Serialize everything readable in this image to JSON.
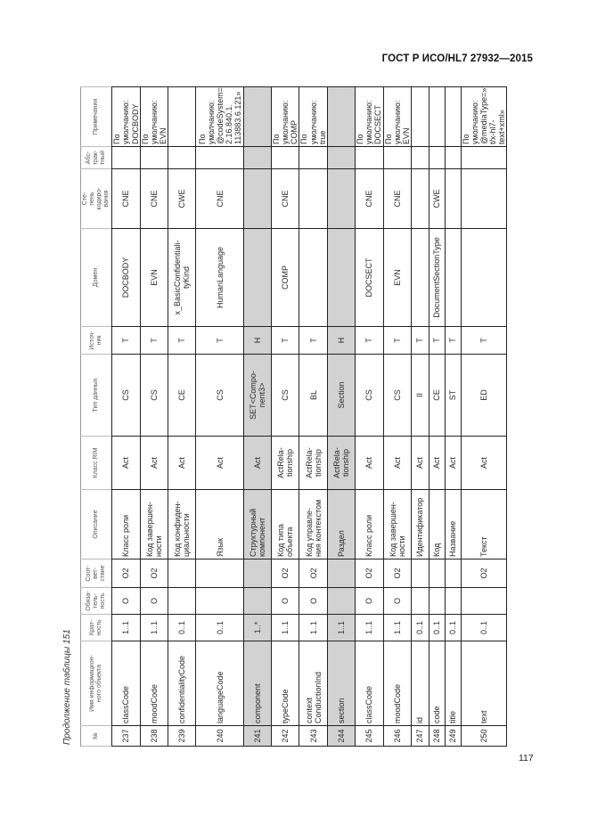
{
  "header": {
    "title": "ГОСТ Р ИСО/HL7 27932—2015"
  },
  "footer": {
    "page_number": "117"
  },
  "table": {
    "caption": "Продолжение таблицы 151",
    "columns": [
      "№",
      "Имя информацион-\nного объекта",
      "Крат-\nность",
      "Обяза-\nтель-\nность",
      "Соот-\nвет-\nствие",
      "Описание",
      "Класс RIM",
      "Тип данных",
      "Источ-\nник",
      "Домен",
      "Сте-\nпень\nкодиро-\nвания",
      "Абс-\nтрак-\nтный",
      "Примечания"
    ],
    "shaded_row_color": "#d2d2d2",
    "rows": [
      {
        "num": "237",
        "name": "classCode",
        "card": "1..1",
        "mand": "O",
        "conf": "O2",
        "desc": "Класс роли",
        "rim": "Act",
        "type": "CS",
        "src": "T",
        "domain": "DOCBODY",
        "coding": "CNE",
        "abstract": "",
        "note": "По умолчанию:\nDOCBODY",
        "shaded": false
      },
      {
        "num": "238",
        "name": "moodCode",
        "card": "1..1",
        "mand": "O",
        "conf": "O2",
        "desc": "Код завершен-\nности",
        "rim": "Act",
        "type": "CS",
        "src": "T",
        "domain": "EVN",
        "coding": "CNE",
        "abstract": "",
        "note": "По умолчанию:\nEVN",
        "shaded": false
      },
      {
        "num": "239",
        "name": "confidentialityCode",
        "card": "0..1",
        "mand": "",
        "conf": "",
        "desc": "Код конфиден-\nциальности",
        "rim": "Act",
        "type": "CE",
        "src": "T",
        "domain": "x_BasicConfidentiali-\ntyKind",
        "coding": "CWE",
        "abstract": "",
        "note": "",
        "shaded": false
      },
      {
        "num": "240",
        "name": "languageCode",
        "card": "0..1",
        "mand": "",
        "conf": "",
        "desc": "Язык",
        "rim": "Act",
        "type": "CS",
        "src": "T",
        "domain": "HumanLanguage",
        "coding": "CNE",
        "abstract": "",
        "note": "По умолчанию:\n@codeSystem=»\n2.16.840.1.\n113883.6.121»",
        "shaded": false
      },
      {
        "num": "241",
        "name": "component",
        "card": "1..*",
        "mand": "",
        "conf": "",
        "desc": "Структурный\nкомпонент",
        "rim": "Act",
        "type": "SET<Compo-\nnent3>",
        "src": "H",
        "domain": "",
        "coding": "",
        "abstract": "",
        "note": "",
        "shaded": true
      },
      {
        "num": "242",
        "name": "typeCode",
        "card": "1..1",
        "mand": "O",
        "conf": "O2",
        "desc": "Код типа\nобъекта",
        "rim": "ActRela-\ntionship",
        "type": "CS",
        "src": "T",
        "domain": "COMP",
        "coding": "CNE",
        "abstract": "",
        "note": "По умолчанию:\nCOMP",
        "shaded": false
      },
      {
        "num": "243",
        "name": "context\nConductionInd",
        "card": "1..1",
        "mand": "O",
        "conf": "O2",
        "desc": "Код управле-\nния контекстом",
        "rim": "ActRela-\ntionship",
        "type": "BL",
        "src": "T",
        "domain": "",
        "coding": "",
        "abstract": "",
        "note": "По умолчанию:\ntrue",
        "shaded": false
      },
      {
        "num": "244",
        "name": "section",
        "card": "1..1",
        "mand": "",
        "conf": "",
        "desc": "Раздел",
        "rim": "ActRela-\ntionship",
        "type": "Section",
        "src": "H",
        "domain": "",
        "coding": "",
        "abstract": "",
        "note": "",
        "shaded": true
      },
      {
        "num": "245",
        "name": "classCode",
        "card": "1..1",
        "mand": "O",
        "conf": "O2",
        "desc": "Класс роли",
        "rim": "Act",
        "type": "CS",
        "src": "T",
        "domain": "DOCSECT",
        "coding": "CNE",
        "abstract": "",
        "note": "По умолчанию:\nDOCSECT",
        "shaded": false
      },
      {
        "num": "246",
        "name": "moodCode",
        "card": "1..1",
        "mand": "O",
        "conf": "O2",
        "desc": "Код завершен-\nности",
        "rim": "Act",
        "type": "CS",
        "src": "T",
        "domain": "EVN",
        "coding": "CNE",
        "abstract": "",
        "note": "По умолчанию:\nEVN",
        "shaded": false
      },
      {
        "num": "247",
        "name": "id",
        "card": "0..1",
        "mand": "",
        "conf": "",
        "desc": "Идентификатор",
        "rim": "Act",
        "type": "II",
        "src": "T",
        "domain": "",
        "coding": "",
        "abstract": "",
        "note": "",
        "shaded": false
      },
      {
        "num": "248",
        "name": "code",
        "card": "0..1",
        "mand": "",
        "conf": "",
        "desc": "Код",
        "rim": "Act",
        "type": "CE",
        "src": "T",
        "domain": "DocumentSectionType",
        "coding": "CWE",
        "abstract": "",
        "note": "",
        "shaded": false
      },
      {
        "num": "249",
        "name": "title",
        "card": "0..1",
        "mand": "",
        "conf": "",
        "desc": "Название",
        "rim": "Act",
        "type": "ST",
        "src": "T",
        "domain": "",
        "coding": "",
        "abstract": "",
        "note": "",
        "shaded": false
      },
      {
        "num": "250",
        "name": "text",
        "card": "0..1",
        "mand": "",
        "conf": "O2",
        "desc": "Текст",
        "rim": "Act",
        "type": "ED",
        "src": "T",
        "domain": "",
        "coding": "",
        "abstract": "",
        "note": "По умолчанию:\n@mediaType=»tex-\nt/x-hl7-text+xml»",
        "shaded": false
      }
    ]
  }
}
